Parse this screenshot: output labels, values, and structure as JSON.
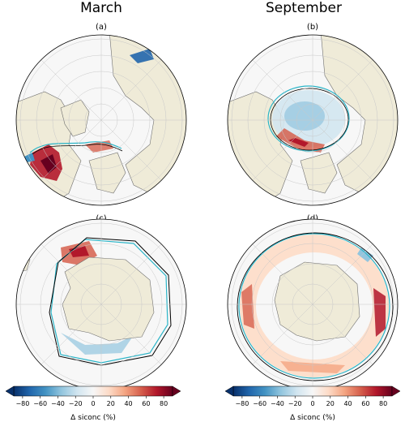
{
  "titles": {
    "left": "March",
    "right": "September"
  },
  "panels": [
    {
      "id": "a",
      "label": "(a)",
      "hemisphere": "north",
      "month": "March"
    },
    {
      "id": "b",
      "label": "(b)",
      "hemisphere": "north",
      "month": "September"
    },
    {
      "id": "c",
      "label": "(c)",
      "hemisphere": "south",
      "month": "March"
    },
    {
      "id": "d",
      "label": "(d)",
      "hemisphere": "south",
      "month": "September"
    }
  ],
  "colorbar": {
    "label": "Δ siconc (%)",
    "ticks": [
      "−80",
      "−60",
      "−40",
      "−20",
      "0",
      "20",
      "40",
      "60",
      "80"
    ],
    "range": [
      -90,
      90
    ],
    "colors": [
      "#08306b",
      "#2166ac",
      "#4393c3",
      "#92c5de",
      "#d1e5f0",
      "#f7f7f7",
      "#fddbc7",
      "#f4a582",
      "#d6604d",
      "#b2182b",
      "#67001f"
    ]
  },
  "colors": {
    "land": "#efebd8",
    "ocean": "#f7f7f7",
    "grid": "#c8c8c8",
    "coast": "#6e6e6e",
    "obs_edge": "#2bb5c8",
    "model_edge": "#000000"
  }
}
